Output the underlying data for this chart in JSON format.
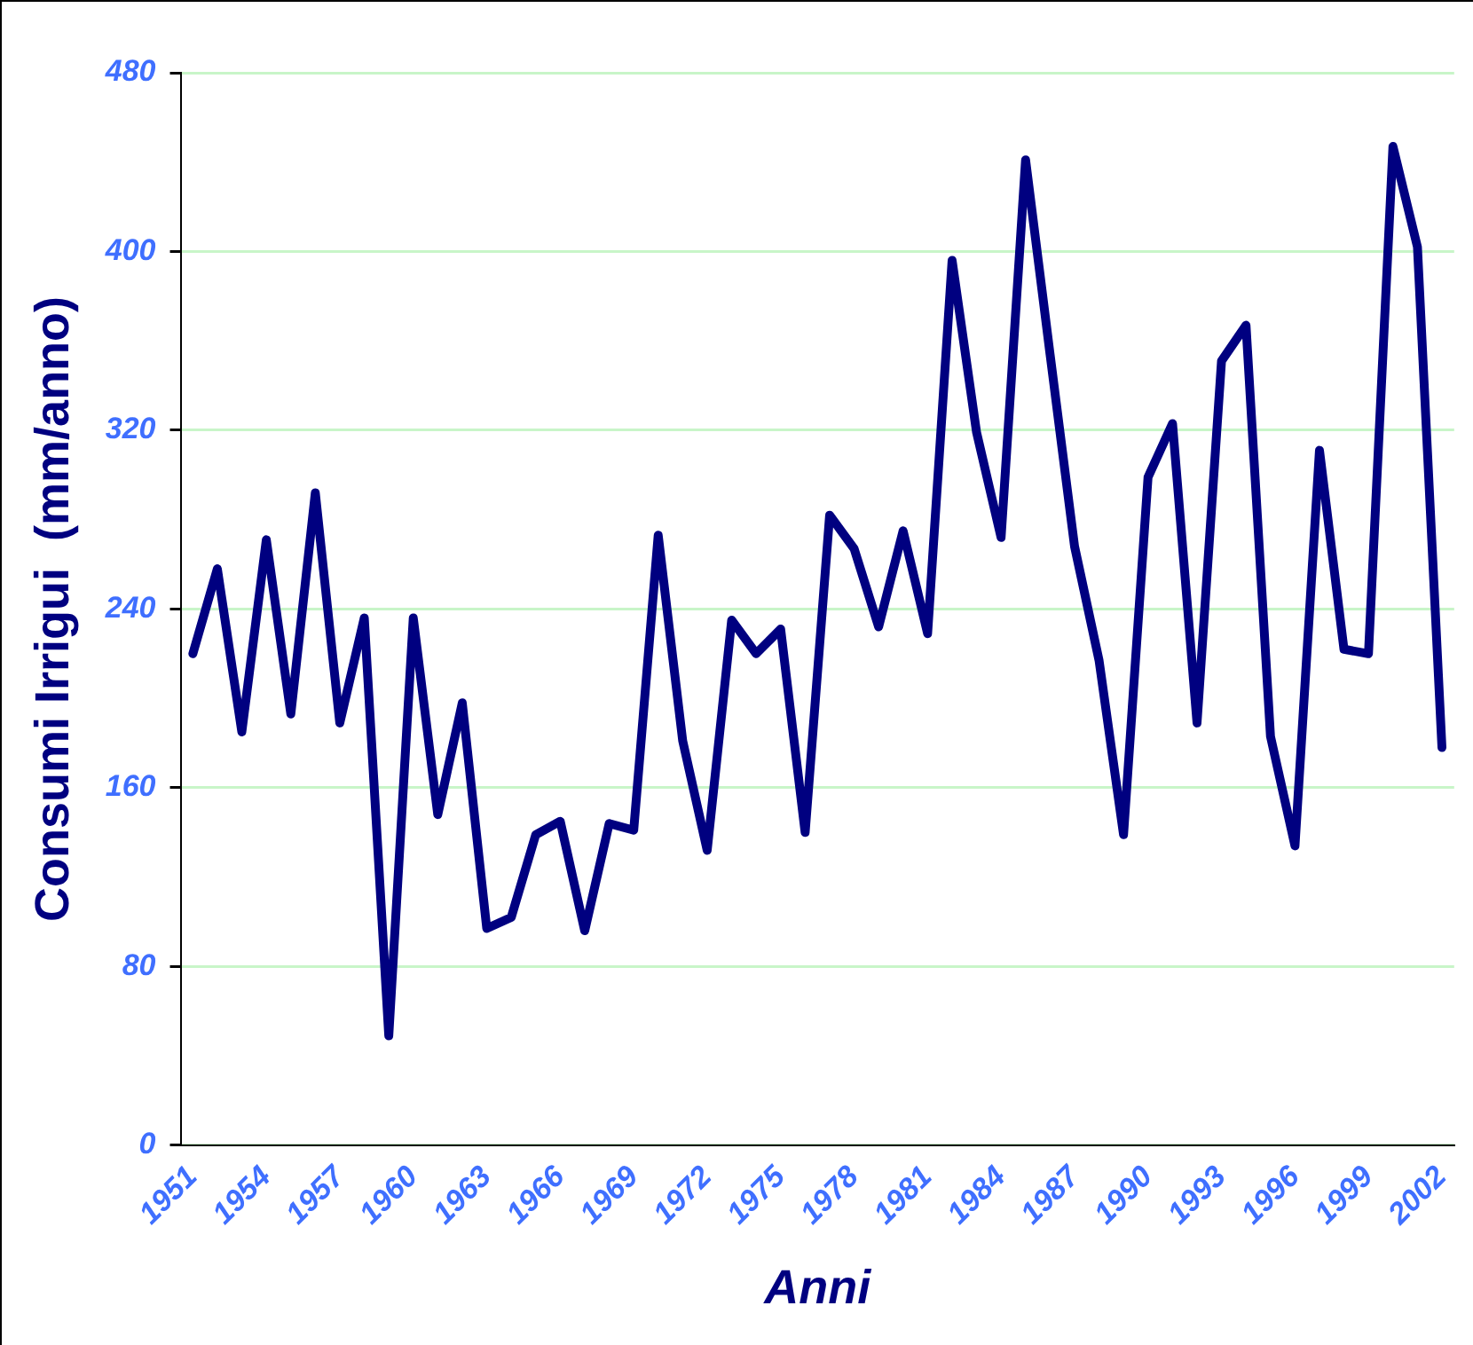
{
  "chart_data": {
    "type": "line",
    "xlabel": "Anni",
    "ylabel": "Consumi Irrigui  (mm/anno)",
    "categories": [
      "1951",
      null,
      null,
      "1954",
      null,
      null,
      "1957",
      null,
      null,
      "1960",
      null,
      null,
      "1963",
      null,
      null,
      "1966",
      null,
      null,
      "1969",
      null,
      null,
      "1972",
      null,
      null,
      "1975",
      null,
      null,
      "1978",
      null,
      null,
      "1981",
      null,
      null,
      "1984",
      null,
      null,
      "1987",
      null,
      null,
      "1990",
      null,
      null,
      "1993",
      null,
      null,
      "1996",
      null,
      null,
      "1999",
      null,
      null,
      "2002"
    ],
    "series": [
      {
        "color": "#000080",
        "values": [
          220,
          258,
          185,
          271,
          193,
          292,
          189,
          236,
          49,
          236,
          148,
          198,
          97,
          102,
          139,
          145,
          96,
          144,
          141,
          273,
          181,
          132,
          235,
          220,
          231,
          140,
          282,
          267,
          232,
          275,
          229,
          396,
          319,
          272,
          441,
          354,
          268,
          217,
          139,
          299,
          323,
          189,
          351,
          367,
          183,
          134,
          311,
          222,
          220,
          447,
          402,
          178
        ]
      }
    ],
    "ylim": [
      0,
      480
    ],
    "yticks": [
      0,
      80,
      160,
      240,
      320,
      400,
      480
    ],
    "grid": "y",
    "legend": false,
    "marker": "none",
    "line_style": "solid"
  }
}
